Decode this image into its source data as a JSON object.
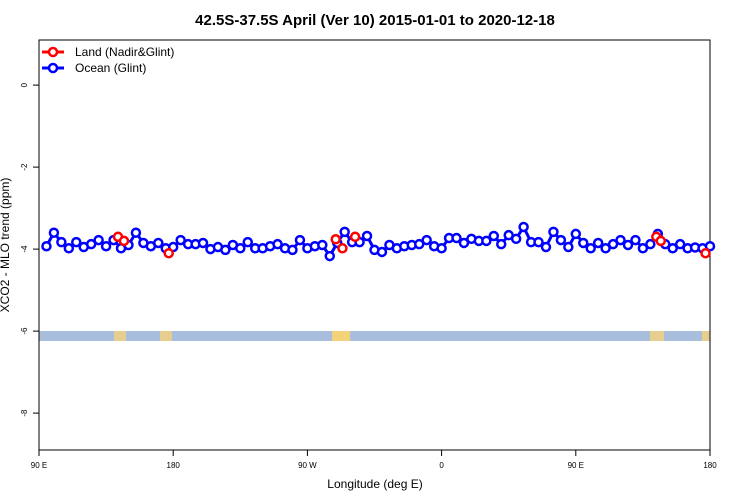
{
  "chart_data": {
    "type": "line",
    "title": "42.5S-37.5S April (Ver 10)   2015-01-01 to 2020-12-18",
    "x_label": "Longitude (deg E)",
    "y_label": "XCO2 - MLO trend (ppm)",
    "xlim": [
      90,
      540
    ],
    "xticks": [
      {
        "value": 90,
        "label": "90 E"
      },
      {
        "value": 180,
        "label": "180"
      },
      {
        "value": 270,
        "label": "90 W"
      },
      {
        "value": 360,
        "label": "0"
      },
      {
        "value": 450,
        "label": "90 E"
      },
      {
        "value": 540,
        "label": "180"
      }
    ],
    "ylim": [
      -8.9,
      1.1
    ],
    "yticks": [
      0,
      -2,
      -4,
      -6,
      -8
    ],
    "legend": "top-left",
    "series": [
      {
        "name": "Land (Nadir&Glint)",
        "color": "#ff0000",
        "x": [
          143,
          147,
          177,
          289,
          293.5,
          302,
          504,
          507,
          537
        ],
        "values": [
          -3.7,
          -3.8,
          -4.1,
          -3.76,
          -3.98,
          -3.7,
          -3.7,
          -3.8,
          -4.1
        ]
      },
      {
        "name": "Ocean (Glint)",
        "color": "#0000ff",
        "x": [
          95,
          100,
          105,
          110,
          115,
          120,
          125,
          130,
          135,
          140,
          145,
          150,
          155,
          160,
          165,
          170,
          175,
          180,
          185,
          190,
          195,
          200,
          205,
          210,
          215,
          220,
          225,
          230,
          235,
          240,
          245,
          250,
          255,
          260,
          265,
          270,
          275,
          280,
          285,
          290,
          295,
          300,
          305,
          310,
          315,
          320,
          325,
          330,
          335,
          340,
          345,
          350,
          355,
          360,
          365,
          370,
          375,
          380,
          385,
          390,
          395,
          400,
          405,
          410,
          415,
          420,
          425,
          430,
          435,
          440,
          445,
          450,
          455,
          460,
          465,
          470,
          475,
          480,
          485,
          490,
          495,
          500,
          505,
          510,
          515,
          520,
          525,
          530,
          535,
          540
        ],
        "values": [
          -3.93,
          -3.6,
          -3.83,
          -3.98,
          -3.83,
          -3.95,
          -3.88,
          -3.78,
          -3.93,
          -3.78,
          -3.98,
          -3.9,
          -3.6,
          -3.85,
          -3.93,
          -3.85,
          -3.98,
          -3.95,
          -3.78,
          -3.88,
          -3.88,
          -3.85,
          -4.0,
          -3.95,
          -4.02,
          -3.9,
          -3.98,
          -3.83,
          -3.98,
          -3.98,
          -3.93,
          -3.88,
          -3.98,
          -4.02,
          -3.78,
          -3.98,
          -3.93,
          -3.9,
          -4.17,
          -3.85,
          -3.58,
          -3.83,
          -3.83,
          -3.68,
          -4.02,
          -4.07,
          -3.9,
          -3.98,
          -3.93,
          -3.9,
          -3.88,
          -3.78,
          -3.93,
          -3.98,
          -3.73,
          -3.73,
          -3.85,
          -3.75,
          -3.8,
          -3.8,
          -3.68,
          -3.88,
          -3.66,
          -3.75,
          -3.46,
          -3.83,
          -3.83,
          -3.95,
          -3.58,
          -3.78,
          -3.95,
          -3.63,
          -3.85,
          -3.98,
          -3.85,
          -3.98,
          -3.88,
          -3.78,
          -3.9,
          -3.78,
          -3.98,
          -3.88,
          -3.63,
          -3.88,
          -3.98,
          -3.88,
          -3.98,
          -3.96,
          -3.98,
          -3.93
        ]
      }
    ]
  }
}
